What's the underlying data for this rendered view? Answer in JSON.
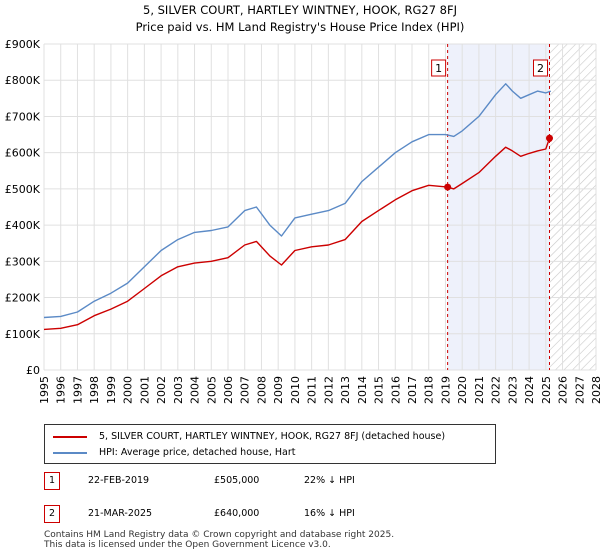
{
  "title_line1": "5, SILVER COURT, HARTLEY WINTNEY, HOOK, RG27 8FJ",
  "title_line2": "Price paid vs. HM Land Registry's House Price Index (HPI)",
  "chart_data": {
    "type": "line",
    "title": "5, SILVER COURT, HARTLEY WINTNEY, HOOK, RG27 8FJ — Price paid vs. HM Land Registry's House Price Index (HPI)",
    "xlim": [
      1995,
      2028
    ],
    "ylim": [
      0,
      900000
    ],
    "x_ticks": [
      1995,
      1996,
      1997,
      1998,
      1999,
      2000,
      2001,
      2002,
      2003,
      2004,
      2005,
      2006,
      2007,
      2008,
      2009,
      2010,
      2011,
      2012,
      2013,
      2014,
      2015,
      2016,
      2017,
      2018,
      2019,
      2020,
      2021,
      2022,
      2023,
      2024,
      2025,
      2026,
      2027,
      2028
    ],
    "y_ticks": [
      0,
      100000,
      200000,
      300000,
      400000,
      500000,
      600000,
      700000,
      800000,
      900000
    ],
    "y_tick_labels": [
      "£0",
      "£100K",
      "£200K",
      "£300K",
      "£400K",
      "£500K",
      "£600K",
      "£700K",
      "£800K",
      "£900K"
    ],
    "series": [
      {
        "name": "HPI: Average price, detached house, Hart",
        "color": "#5b8ac6",
        "x": [
          1995,
          1996,
          1997,
          1998,
          1999,
          2000,
          2001,
          2002,
          2003,
          2004,
          2005,
          2006,
          2007,
          2007.7,
          2008.5,
          2009.2,
          2010,
          2011,
          2012,
          2013,
          2014,
          2015,
          2016,
          2017,
          2018,
          2019,
          2019.5,
          2020,
          2021,
          2022,
          2022.6,
          2023,
          2023.5,
          2024,
          2024.5,
          2025,
          2025.3
        ],
        "y": [
          145000,
          148000,
          160000,
          190000,
          212000,
          240000,
          285000,
          330000,
          360000,
          380000,
          385000,
          395000,
          440000,
          450000,
          400000,
          370000,
          420000,
          430000,
          440000,
          460000,
          520000,
          560000,
          600000,
          630000,
          650000,
          650000,
          645000,
          660000,
          700000,
          760000,
          790000,
          770000,
          750000,
          760000,
          770000,
          765000,
          770000
        ]
      },
      {
        "name": "5, SILVER COURT, HARTLEY WINTNEY, HOOK, RG27 8FJ (detached house)",
        "color": "#cc0000",
        "x": [
          1995,
          1996,
          1997,
          1998,
          1999,
          2000,
          2001,
          2002,
          2003,
          2004,
          2005,
          2006,
          2007,
          2007.7,
          2008.5,
          2009.2,
          2010,
          2011,
          2012,
          2013,
          2014,
          2015,
          2016,
          2017,
          2018,
          2019.13,
          2019.5,
          2020,
          2021,
          2022,
          2022.6,
          2023,
          2023.5,
          2024,
          2024.5,
          2025.0,
          2025.22,
          2025.3
        ],
        "y": [
          112000,
          115000,
          125000,
          150000,
          168000,
          190000,
          225000,
          260000,
          285000,
          295000,
          300000,
          310000,
          345000,
          355000,
          315000,
          290000,
          330000,
          340000,
          345000,
          360000,
          410000,
          440000,
          470000,
          495000,
          510000,
          505000,
          500000,
          515000,
          545000,
          590000,
          615000,
          605000,
          590000,
          598000,
          605000,
          610000,
          640000,
          630000
        ]
      }
    ],
    "annotations": [
      {
        "label": "1",
        "x": 2019.13,
        "y": 505000
      },
      {
        "label": "2",
        "x": 2025.22,
        "y": 640000
      }
    ],
    "shaded_region": {
      "x": [
        2019.13,
        2025.22
      ],
      "color": "#eef1fb"
    },
    "hatched_region": {
      "x": [
        2025.22,
        2028
      ]
    },
    "legend_position": "below"
  },
  "legend": {
    "property_label": "5, SILVER COURT, HARTLEY WINTNEY, HOOK, RG27 8FJ (detached house)",
    "hpi_label": "HPI: Average price, detached house, Hart",
    "property_color": "#cc0000",
    "hpi_color": "#5b8ac6"
  },
  "sales": [
    {
      "marker": "1",
      "date": "22-FEB-2019",
      "price": "£505,000",
      "hpi_delta": "22% ↓ HPI"
    },
    {
      "marker": "2",
      "date": "21-MAR-2025",
      "price": "£640,000",
      "hpi_delta": "16% ↓ HPI"
    }
  ],
  "footer": {
    "line1": "Contains HM Land Registry data © Crown copyright and database right 2025.",
    "line2": "This data is licensed under the Open Government Licence v3.0."
  }
}
